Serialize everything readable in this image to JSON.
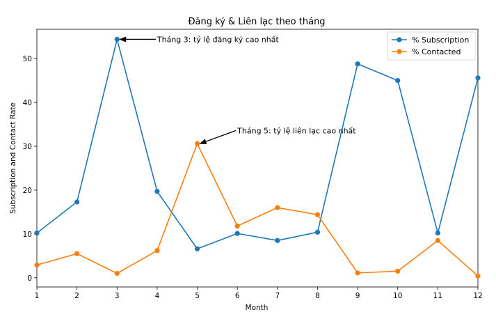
{
  "chart_data": {
    "type": "line",
    "title": "Đăng ký & Liên lạc theo tháng",
    "xlabel": "Month",
    "ylabel": "Subscription and Contact Rate",
    "x": [
      1,
      2,
      3,
      4,
      5,
      6,
      7,
      8,
      9,
      10,
      11,
      12
    ],
    "xlim": [
      1,
      12
    ],
    "ylim": [
      -2.1,
      56.7
    ],
    "xticks": [
      "1",
      "2",
      "3",
      "4",
      "5",
      "6",
      "7",
      "8",
      "9",
      "10",
      "11",
      "12"
    ],
    "yticks": [
      0,
      10,
      20,
      30,
      40,
      50
    ],
    "grid": false,
    "legend": "upper-right",
    "series": [
      {
        "name": "% Subscription",
        "color": "#1f77b4",
        "values": [
          10.2,
          17.3,
          54.4,
          19.7,
          6.6,
          10.1,
          8.5,
          10.4,
          48.8,
          45.0,
          10.2,
          45.6
        ]
      },
      {
        "name": "% Contacted",
        "color": "#ff7f0e",
        "values": [
          2.9,
          5.5,
          1.0,
          6.2,
          30.6,
          11.8,
          16.0,
          14.4,
          1.1,
          1.5,
          8.5,
          0.4
        ]
      }
    ],
    "annotations": [
      {
        "text": "Tháng 3: tỷ lệ đăng ký cao nhất",
        "x": 3,
        "y": 54.4,
        "text_x": 4,
        "text_y": 54.4
      },
      {
        "text": "Tháng 5: tỷ lệ liên lạc cao nhất",
        "x": 5,
        "y": 30.6,
        "text_x": 6,
        "text_y": 33.6
      }
    ]
  }
}
